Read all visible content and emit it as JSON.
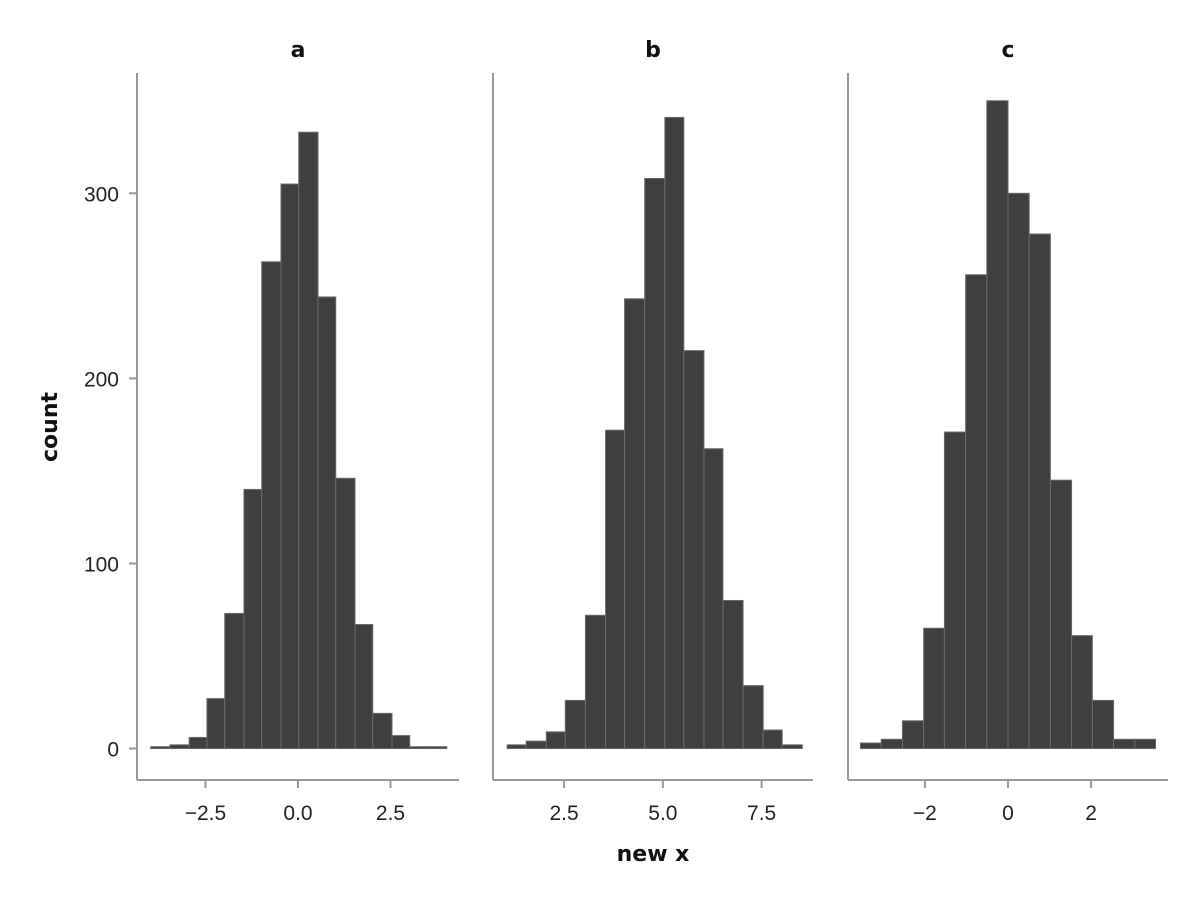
{
  "chart_data": {
    "type": "bar",
    "ylabel": "count",
    "xlabel": "new x",
    "ylim": [
      -17,
      365
    ],
    "y_ticks": [
      0,
      100,
      200,
      300
    ],
    "y_tick_labels": [
      "0",
      "100",
      "200",
      "300"
    ],
    "bar_color": "#3f3f3f",
    "grid": false,
    "facets": [
      {
        "name": "a",
        "xlim": [
          -4.35,
          4.35
        ],
        "x_ticks": [
          -2.5,
          0.0,
          2.5
        ],
        "x_tick_labels": [
          "−2.5",
          "0.0",
          "2.5"
        ],
        "bins": [
          {
            "x0": -3.98,
            "x1": -3.46,
            "count": 1
          },
          {
            "x0": -3.46,
            "x1": -2.94,
            "count": 2
          },
          {
            "x0": -2.94,
            "x1": -2.46,
            "count": 6
          },
          {
            "x0": -2.46,
            "x1": -1.98,
            "count": 27
          },
          {
            "x0": -1.98,
            "x1": -1.46,
            "count": 73
          },
          {
            "x0": -1.46,
            "x1": -0.98,
            "count": 140
          },
          {
            "x0": -0.98,
            "x1": -0.46,
            "count": 263
          },
          {
            "x0": -0.46,
            "x1": 0.02,
            "count": 305
          },
          {
            "x0": 0.02,
            "x1": 0.54,
            "count": 333
          },
          {
            "x0": 0.54,
            "x1": 1.02,
            "count": 244
          },
          {
            "x0": 1.02,
            "x1": 1.54,
            "count": 146
          },
          {
            "x0": 1.54,
            "x1": 2.02,
            "count": 67
          },
          {
            "x0": 2.02,
            "x1": 2.54,
            "count": 19
          },
          {
            "x0": 2.54,
            "x1": 3.02,
            "count": 7
          },
          {
            "x0": 3.02,
            "x1": 3.54,
            "count": 1
          },
          {
            "x0": 3.54,
            "x1": 4.02,
            "count": 1
          }
        ]
      },
      {
        "name": "b",
        "xlim": [
          0.7,
          8.8
        ],
        "x_ticks": [
          2.5,
          5.0,
          7.5
        ],
        "x_tick_labels": [
          "2.5",
          "5.0",
          "7.5"
        ],
        "bins": [
          {
            "x0": 1.06,
            "x1": 1.54,
            "count": 2
          },
          {
            "x0": 1.54,
            "x1": 2.05,
            "count": 4
          },
          {
            "x0": 2.05,
            "x1": 2.53,
            "count": 9
          },
          {
            "x0": 2.53,
            "x1": 3.04,
            "count": 26
          },
          {
            "x0": 3.04,
            "x1": 3.55,
            "count": 72
          },
          {
            "x0": 3.55,
            "x1": 4.03,
            "count": 172
          },
          {
            "x0": 4.03,
            "x1": 4.54,
            "count": 243
          },
          {
            "x0": 4.54,
            "x1": 5.05,
            "count": 308
          },
          {
            "x0": 5.05,
            "x1": 5.53,
            "count": 341
          },
          {
            "x0": 5.53,
            "x1": 6.04,
            "count": 215
          },
          {
            "x0": 6.04,
            "x1": 6.52,
            "count": 162
          },
          {
            "x0": 6.52,
            "x1": 7.03,
            "count": 80
          },
          {
            "x0": 7.03,
            "x1": 7.54,
            "count": 34
          },
          {
            "x0": 7.54,
            "x1": 8.02,
            "count": 10
          },
          {
            "x0": 8.02,
            "x1": 8.53,
            "count": 2
          }
        ]
      },
      {
        "name": "c",
        "xlim": [
          -3.85,
          3.85
        ],
        "x_ticks": [
          -2,
          0,
          2
        ],
        "x_tick_labels": [
          "−2",
          "0",
          "2"
        ],
        "bins": [
          {
            "x0": -3.55,
            "x1": -3.05,
            "count": 3
          },
          {
            "x0": -3.05,
            "x1": -2.54,
            "count": 5
          },
          {
            "x0": -2.54,
            "x1": -2.03,
            "count": 15
          },
          {
            "x0": -2.03,
            "x1": -1.53,
            "count": 65
          },
          {
            "x0": -1.53,
            "x1": -1.02,
            "count": 171
          },
          {
            "x0": -1.02,
            "x1": -0.51,
            "count": 256
          },
          {
            "x0": -0.51,
            "x1": 0.0,
            "count": 350
          },
          {
            "x0": 0.0,
            "x1": 0.51,
            "count": 300
          },
          {
            "x0": 0.51,
            "x1": 1.02,
            "count": 278
          },
          {
            "x0": 1.02,
            "x1": 1.53,
            "count": 145
          },
          {
            "x0": 1.53,
            "x1": 2.03,
            "count": 61
          },
          {
            "x0": 2.03,
            "x1": 2.54,
            "count": 26
          },
          {
            "x0": 2.54,
            "x1": 3.05,
            "count": 5
          },
          {
            "x0": 3.05,
            "x1": 3.55,
            "count": 5
          }
        ]
      }
    ]
  }
}
